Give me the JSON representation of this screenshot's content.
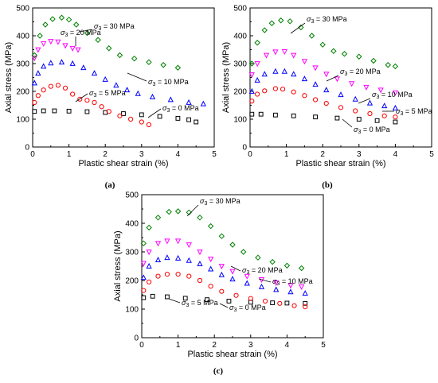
{
  "chart_data": [
    {
      "type": "scatter",
      "panel_label": "(a)",
      "xlabel": "Plastic shear strain (%)",
      "ylabel": "Axial stress (MPa)",
      "xlim": [
        0,
        5
      ],
      "ylim": [
        0,
        500
      ],
      "xticks": [
        0,
        1,
        2,
        3,
        4,
        5
      ],
      "yticks": [
        0,
        100,
        200,
        300,
        400,
        500
      ],
      "series": [
        {
          "name": "σ3 = 0 MPa",
          "marker": "square",
          "color": "#000000",
          "points": [
            [
              0.05,
              128
            ],
            [
              0.3,
              130
            ],
            [
              0.6,
              130
            ],
            [
              1,
              129
            ],
            [
              1.5,
              127
            ],
            [
              2,
              124
            ],
            [
              2.5,
              120
            ],
            [
              3,
              116
            ],
            [
              3.5,
              110
            ],
            [
              4,
              103
            ],
            [
              4.3,
              98
            ],
            [
              4.5,
              90
            ]
          ]
        },
        {
          "name": "σ3 = 5 MPa",
          "marker": "circle",
          "color": "#ff0000",
          "points": [
            [
              0.05,
              160
            ],
            [
              0.15,
              185
            ],
            [
              0.3,
              205
            ],
            [
              0.5,
              218
            ],
            [
              0.7,
              222
            ],
            [
              0.9,
              212
            ],
            [
              1.1,
              190
            ],
            [
              1.3,
              172
            ],
            [
              1.5,
              168
            ],
            [
              1.7,
              160
            ],
            [
              1.9,
              145
            ],
            [
              2.1,
              128
            ],
            [
              2.4,
              112
            ],
            [
              2.7,
              100
            ],
            [
              3.0,
              90
            ],
            [
              3.2,
              80
            ]
          ]
        },
        {
          "name": "σ3 = 10 MPa",
          "marker": "triangle-up",
          "color": "#0000ff",
          "points": [
            [
              0.05,
              230
            ],
            [
              0.15,
              265
            ],
            [
              0.3,
              290
            ],
            [
              0.5,
              302
            ],
            [
              0.8,
              305
            ],
            [
              1.1,
              300
            ],
            [
              1.4,
              285
            ],
            [
              1.7,
              265
            ],
            [
              2.0,
              243
            ],
            [
              2.3,
              222
            ],
            [
              2.6,
              205
            ],
            [
              2.9,
              192
            ],
            [
              3.3,
              180
            ],
            [
              3.8,
              170
            ],
            [
              4.3,
              160
            ],
            [
              4.7,
              155
            ]
          ]
        },
        {
          "name": "σ3 = 20 MPa",
          "marker": "triangle-down",
          "color": "#ff00ff",
          "points": [
            [
              0.05,
              320
            ],
            [
              0.15,
              350
            ],
            [
              0.3,
              372
            ],
            [
              0.5,
              380
            ],
            [
              0.7,
              378
            ],
            [
              0.9,
              365
            ],
            [
              1.1,
              355
            ],
            [
              1.25,
              350
            ]
          ]
        },
        {
          "name": "σ3 = 30 MPa",
          "marker": "diamond",
          "color": "#008000",
          "points": [
            [
              0.05,
              330
            ],
            [
              0.2,
              400
            ],
            [
              0.35,
              440
            ],
            [
              0.55,
              460
            ],
            [
              0.8,
              465
            ],
            [
              1.0,
              458
            ],
            [
              1.2,
              440
            ],
            [
              1.5,
              410
            ],
            [
              1.8,
              385
            ],
            [
              2.1,
              355
            ],
            [
              2.4,
              330
            ],
            [
              2.8,
              318
            ],
            [
              3.2,
              305
            ],
            [
              3.6,
              295
            ],
            [
              4.0,
              285
            ]
          ]
        }
      ],
      "annotations": [
        {
          "text": "σ3 = 30 MPa"
        },
        {
          "text": "σ3 = 20 MPa"
        },
        {
          "text": "σ3 = 10 MPa"
        },
        {
          "text": "σ3 = 5 MPa"
        },
        {
          "text": "σ3 = 0 MPa"
        }
      ]
    },
    {
      "type": "scatter",
      "panel_label": "(b)",
      "xlabel": "Plastic shear strain (%)",
      "ylabel": "Axial stress (MPa)",
      "xlim": [
        0,
        5
      ],
      "ylim": [
        0,
        500
      ],
      "xticks": [
        0,
        1,
        2,
        3,
        4,
        5
      ],
      "yticks": [
        0,
        100,
        200,
        300,
        400,
        500
      ],
      "series": [
        {
          "name": "σ3 = 0 MPa",
          "marker": "square",
          "color": "#000000",
          "points": [
            [
              0.05,
              118
            ],
            [
              0.3,
              118
            ],
            [
              0.7,
              115
            ],
            [
              1.2,
              112
            ],
            [
              1.8,
              108
            ],
            [
              2.4,
              104
            ],
            [
              3.0,
              100
            ],
            [
              3.5,
              95
            ],
            [
              4.0,
              90
            ]
          ]
        },
        {
          "name": "σ3 = 5 MPa",
          "marker": "circle",
          "color": "#ff0000",
          "points": [
            [
              0.05,
              165
            ],
            [
              0.2,
              190
            ],
            [
              0.4,
              202
            ],
            [
              0.7,
              210
            ],
            [
              0.9,
              208
            ],
            [
              1.2,
              198
            ],
            [
              1.5,
              185
            ],
            [
              1.8,
              170
            ],
            [
              2.1,
              157
            ],
            [
              2.5,
              142
            ],
            [
              2.9,
              130
            ],
            [
              3.3,
              120
            ],
            [
              3.7,
              112
            ],
            [
              4.0,
              108
            ]
          ]
        },
        {
          "name": "σ3 = 10 MPa",
          "marker": "triangle-up",
          "color": "#0000ff",
          "points": [
            [
              0.05,
              200
            ],
            [
              0.2,
              240
            ],
            [
              0.4,
              262
            ],
            [
              0.7,
              272
            ],
            [
              0.95,
              272
            ],
            [
              1.2,
              262
            ],
            [
              1.5,
              245
            ],
            [
              1.8,
              225
            ],
            [
              2.1,
              205
            ],
            [
              2.5,
              188
            ],
            [
              2.9,
              172
            ],
            [
              3.3,
              158
            ],
            [
              3.7,
              148
            ],
            [
              4.0,
              140
            ]
          ]
        },
        {
          "name": "σ3 = 20 MPa",
          "marker": "triangle-down",
          "color": "#ff00ff",
          "points": [
            [
              0.05,
              260
            ],
            [
              0.2,
              300
            ],
            [
              0.45,
              330
            ],
            [
              0.7,
              342
            ],
            [
              0.95,
              343
            ],
            [
              1.2,
              330
            ],
            [
              1.5,
              308
            ],
            [
              1.8,
              285
            ],
            [
              2.1,
              262
            ],
            [
              2.4,
              245
            ],
            [
              2.8,
              228
            ],
            [
              3.2,
              215
            ],
            [
              3.6,
              205
            ],
            [
              4.0,
              195
            ]
          ]
        },
        {
          "name": "σ3 = 30 MPa",
          "marker": "diamond",
          "color": "#008000",
          "points": [
            [
              0.05,
              300
            ],
            [
              0.2,
              375
            ],
            [
              0.4,
              420
            ],
            [
              0.6,
              445
            ],
            [
              0.85,
              455
            ],
            [
              1.1,
              452
            ],
            [
              1.4,
              430
            ],
            [
              1.7,
              400
            ],
            [
              2.0,
              368
            ],
            [
              2.3,
              345
            ],
            [
              2.6,
              335
            ],
            [
              3.0,
              325
            ],
            [
              3.4,
              310
            ],
            [
              3.8,
              295
            ],
            [
              4.0,
              290
            ]
          ]
        }
      ],
      "annotations": [
        {
          "text": "σ3 = 30 MPa"
        },
        {
          "text": "σ3 = 20 MPa"
        },
        {
          "text": "σ3 = 10 MPa"
        },
        {
          "text": "σ3 = 5 MPa"
        },
        {
          "text": "σ3 = 0 MPa"
        }
      ]
    },
    {
      "type": "scatter",
      "panel_label": "(c)",
      "xlabel": "Plastic shear strain (%)",
      "ylabel": "Axial stress (MPa)",
      "xlim": [
        0,
        5
      ],
      "ylim": [
        0,
        500
      ],
      "xticks": [
        0,
        1,
        2,
        3,
        4,
        5
      ],
      "yticks": [
        0,
        100,
        200,
        300,
        400,
        500
      ],
      "series": [
        {
          "name": "σ3 = 0 MPa",
          "marker": "square",
          "color": "#000000",
          "points": [
            [
              0.05,
              140
            ],
            [
              0.3,
              145
            ],
            [
              0.7,
              143
            ],
            [
              1.2,
              138
            ],
            [
              1.8,
              133
            ],
            [
              2.4,
              128
            ],
            [
              3.0,
              124
            ],
            [
              3.6,
              122
            ],
            [
              4.0,
              121
            ],
            [
              4.5,
              120
            ]
          ]
        },
        {
          "name": "σ3 = 5 MPa",
          "marker": "circle",
          "color": "#ff0000",
          "points": [
            [
              0.05,
              165
            ],
            [
              0.2,
              195
            ],
            [
              0.45,
              215
            ],
            [
              0.7,
              222
            ],
            [
              1.0,
              222
            ],
            [
              1.3,
              215
            ],
            [
              1.6,
              200
            ],
            [
              1.9,
              180
            ],
            [
              2.2,
              162
            ],
            [
              2.6,
              148
            ],
            [
              3.0,
              137
            ],
            [
              3.4,
              128
            ],
            [
              3.8,
              120
            ],
            [
              4.2,
              112
            ],
            [
              4.5,
              108
            ]
          ]
        },
        {
          "name": "σ3 = 10 MPa",
          "marker": "triangle-up",
          "color": "#0000ff",
          "points": [
            [
              0.05,
              210
            ],
            [
              0.2,
              250
            ],
            [
              0.45,
              272
            ],
            [
              0.7,
              280
            ],
            [
              1.0,
              278
            ],
            [
              1.3,
              270
            ],
            [
              1.6,
              258
            ],
            [
              1.9,
              240
            ],
            [
              2.2,
              220
            ],
            [
              2.5,
              205
            ],
            [
              2.9,
              190
            ],
            [
              3.3,
              178
            ],
            [
              3.7,
              168
            ],
            [
              4.1,
              160
            ],
            [
              4.5,
              155
            ]
          ]
        },
        {
          "name": "σ3 = 20 MPa",
          "marker": "triangle-down",
          "color": "#ff00ff",
          "points": [
            [
              0.05,
              260
            ],
            [
              0.2,
              300
            ],
            [
              0.45,
              330
            ],
            [
              0.7,
              338
            ],
            [
              1.0,
              338
            ],
            [
              1.3,
              325
            ],
            [
              1.6,
              300
            ],
            [
              1.9,
              275
            ],
            [
              2.2,
              250
            ],
            [
              2.5,
              232
            ],
            [
              2.9,
              215
            ],
            [
              3.3,
              203
            ],
            [
              3.7,
              192
            ],
            [
              4.1,
              183
            ],
            [
              4.4,
              178
            ]
          ]
        },
        {
          "name": "σ3 = 30 MPa",
          "marker": "diamond",
          "color": "#008000",
          "points": [
            [
              0.05,
              330
            ],
            [
              0.2,
              385
            ],
            [
              0.45,
              420
            ],
            [
              0.75,
              440
            ],
            [
              1.0,
              442
            ],
            [
              1.3,
              438
            ],
            [
              1.6,
              420
            ],
            [
              1.9,
              390
            ],
            [
              2.2,
              355
            ],
            [
              2.5,
              325
            ],
            [
              2.8,
              300
            ],
            [
              3.2,
              280
            ],
            [
              3.6,
              265
            ],
            [
              4.0,
              252
            ],
            [
              4.4,
              243
            ]
          ]
        }
      ],
      "annotations": [
        {
          "text": "σ3 = 30 MPa"
        },
        {
          "text": "σ3 = 20 MPa"
        },
        {
          "text": "σ3 = 10 MPa"
        },
        {
          "text": "σ3 = 5 MPa"
        },
        {
          "text": "σ3 = 0 MPa"
        }
      ]
    }
  ]
}
